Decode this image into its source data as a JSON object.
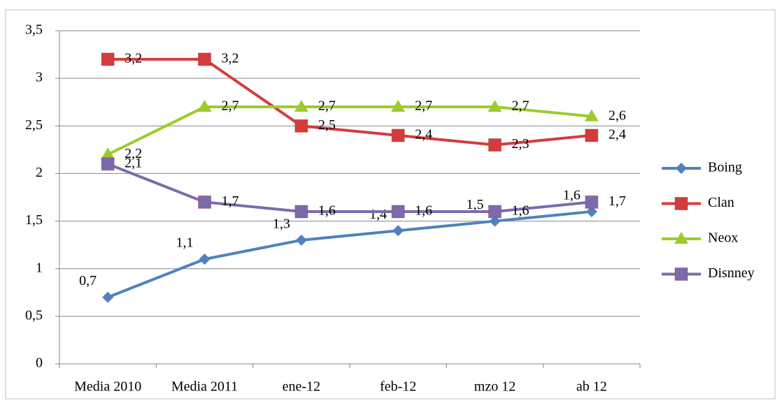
{
  "chart_data": {
    "type": "line",
    "categories": [
      "Media 2010",
      "Media 2011",
      "ene-12",
      "feb-12",
      "mzo 12",
      "ab 12"
    ],
    "series": [
      {
        "name": "Boing",
        "color": "#4f81bd",
        "marker": "diamond",
        "values": [
          0.7,
          1.1,
          1.3,
          1.4,
          1.5,
          1.6
        ],
        "value_labels": [
          "0,7",
          "1,1",
          "1,3",
          "1,4",
          "1,5",
          "1,6"
        ]
      },
      {
        "name": "Clan",
        "color": "#d43c3c",
        "marker": "square",
        "values": [
          3.2,
          3.2,
          2.5,
          2.4,
          2.3,
          2.4
        ],
        "value_labels": [
          "3,2",
          "3,2",
          "2,5",
          "2,4",
          "2,3",
          "2,4"
        ]
      },
      {
        "name": "Neox",
        "color": "#9bcc2c",
        "marker": "triangle",
        "values": [
          2.2,
          2.7,
          2.7,
          2.7,
          2.7,
          2.6
        ],
        "value_labels": [
          "2,2",
          "2,7",
          "2,7",
          "2,7",
          "2,7",
          "2,6"
        ]
      },
      {
        "name": "Disnney",
        "color": "#7d6aac",
        "marker": "square",
        "values": [
          2.1,
          1.7,
          1.6,
          1.6,
          1.6,
          1.7
        ],
        "value_labels": [
          "2,1",
          "1,7",
          "1,6",
          "1,6",
          "1,6",
          "1,7"
        ]
      }
    ],
    "ylim": [
      0,
      3.5
    ],
    "yticks": [
      0,
      {
        "value": 0.5,
        "label": "0,5"
      },
      1,
      {
        "value": 1.5,
        "label": "1,5"
      },
      2,
      {
        "value": 2.5,
        "label": "2,5"
      },
      3,
      {
        "value": 3.5,
        "label": "3,5"
      }
    ],
    "grid": true,
    "legend": "right"
  }
}
